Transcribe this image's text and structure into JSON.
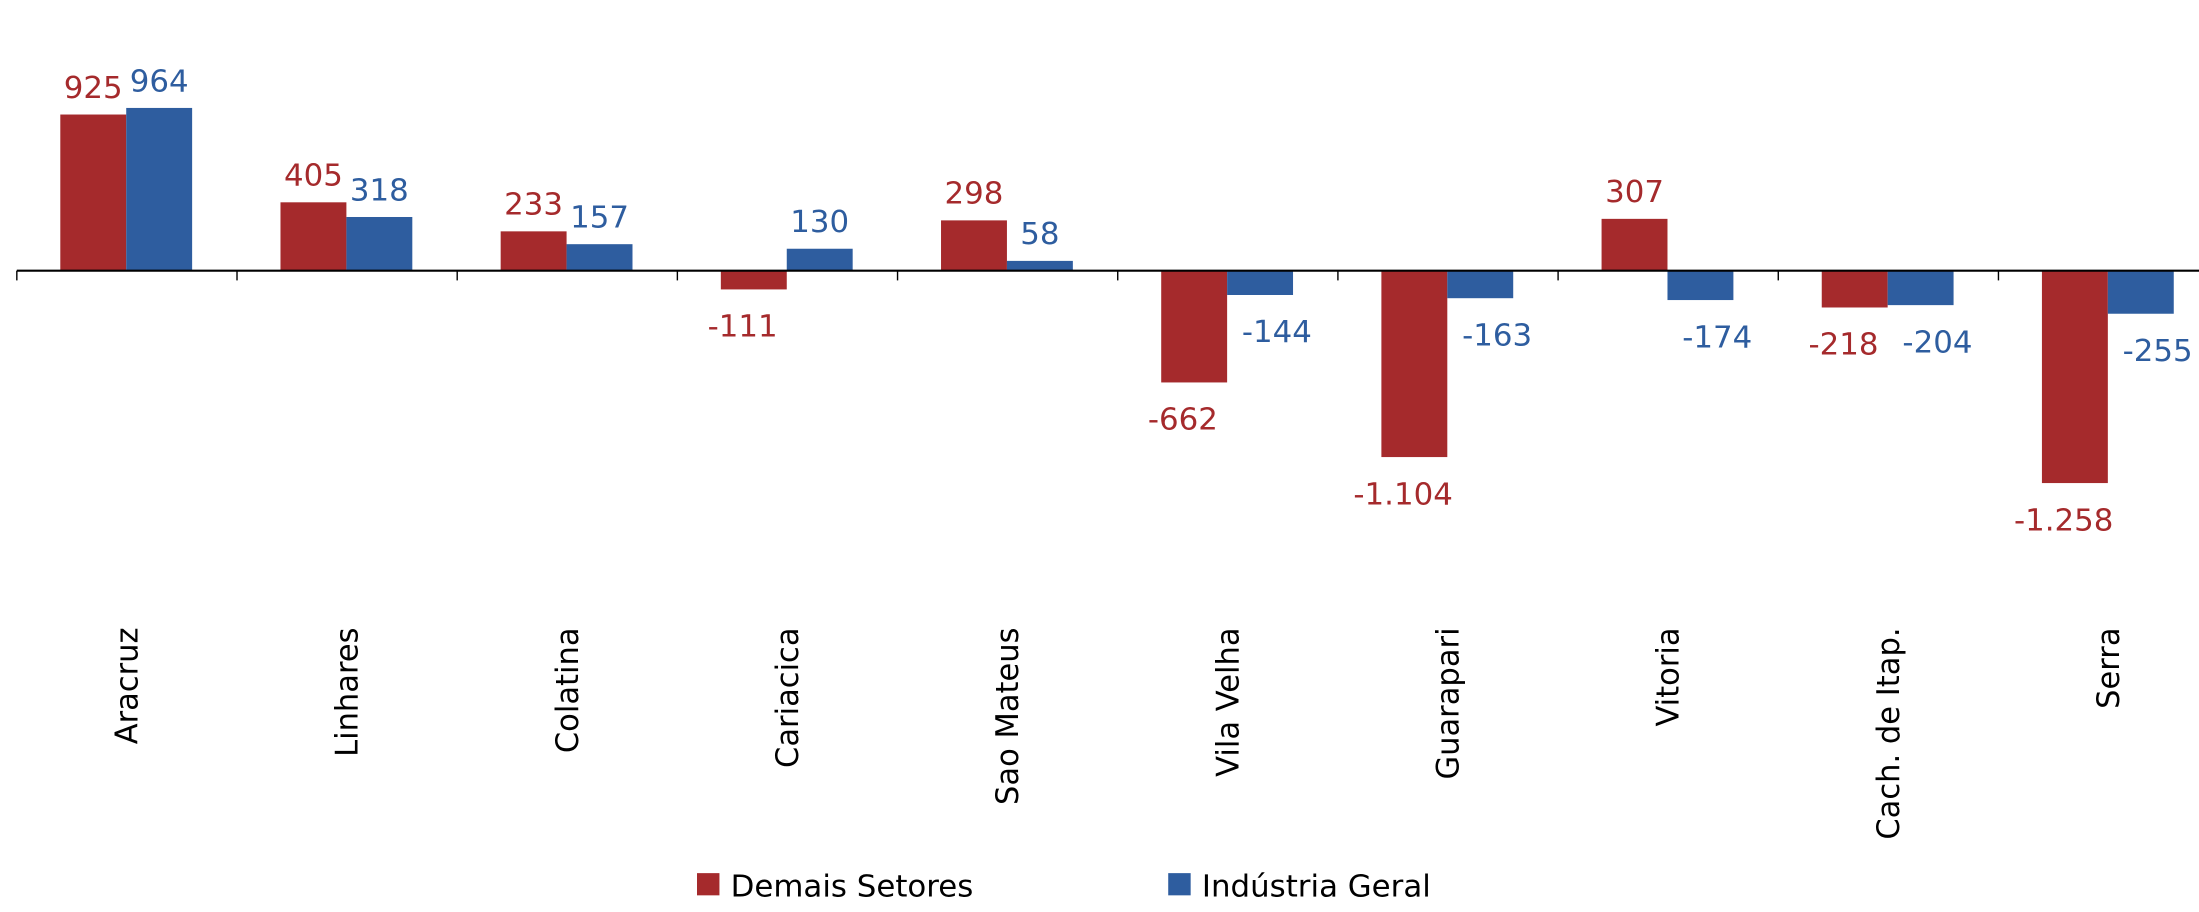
{
  "chart_data": {
    "type": "bar",
    "categories": [
      "Aracruz",
      "Linhares",
      "Colatina",
      "Cariacica",
      "Sao Mateus",
      "Vila Velha",
      "Guarapari",
      "Vitoria",
      "Cach. de Itap.",
      "Serra"
    ],
    "series": [
      {
        "name": "Demais Setores",
        "color": "#a52a2c",
        "values": [
          925,
          405,
          233,
          -111,
          298,
          -662,
          -1104,
          307,
          -218,
          -1258
        ],
        "value_labels": [
          "925",
          "405",
          "233",
          "-111",
          "298",
          "-662",
          "-1.104",
          "307",
          "-218",
          "-1.258"
        ]
      },
      {
        "name": "Indústria Geral",
        "color": "#2e5d9f",
        "values": [
          964,
          318,
          157,
          130,
          58,
          -144,
          -163,
          -174,
          -204,
          -255
        ],
        "value_labels": [
          "964",
          "318",
          "157",
          "130",
          "58",
          "-144",
          "-163",
          "-174",
          "-204",
          "-255"
        ]
      }
    ],
    "legend": "bottom"
  }
}
